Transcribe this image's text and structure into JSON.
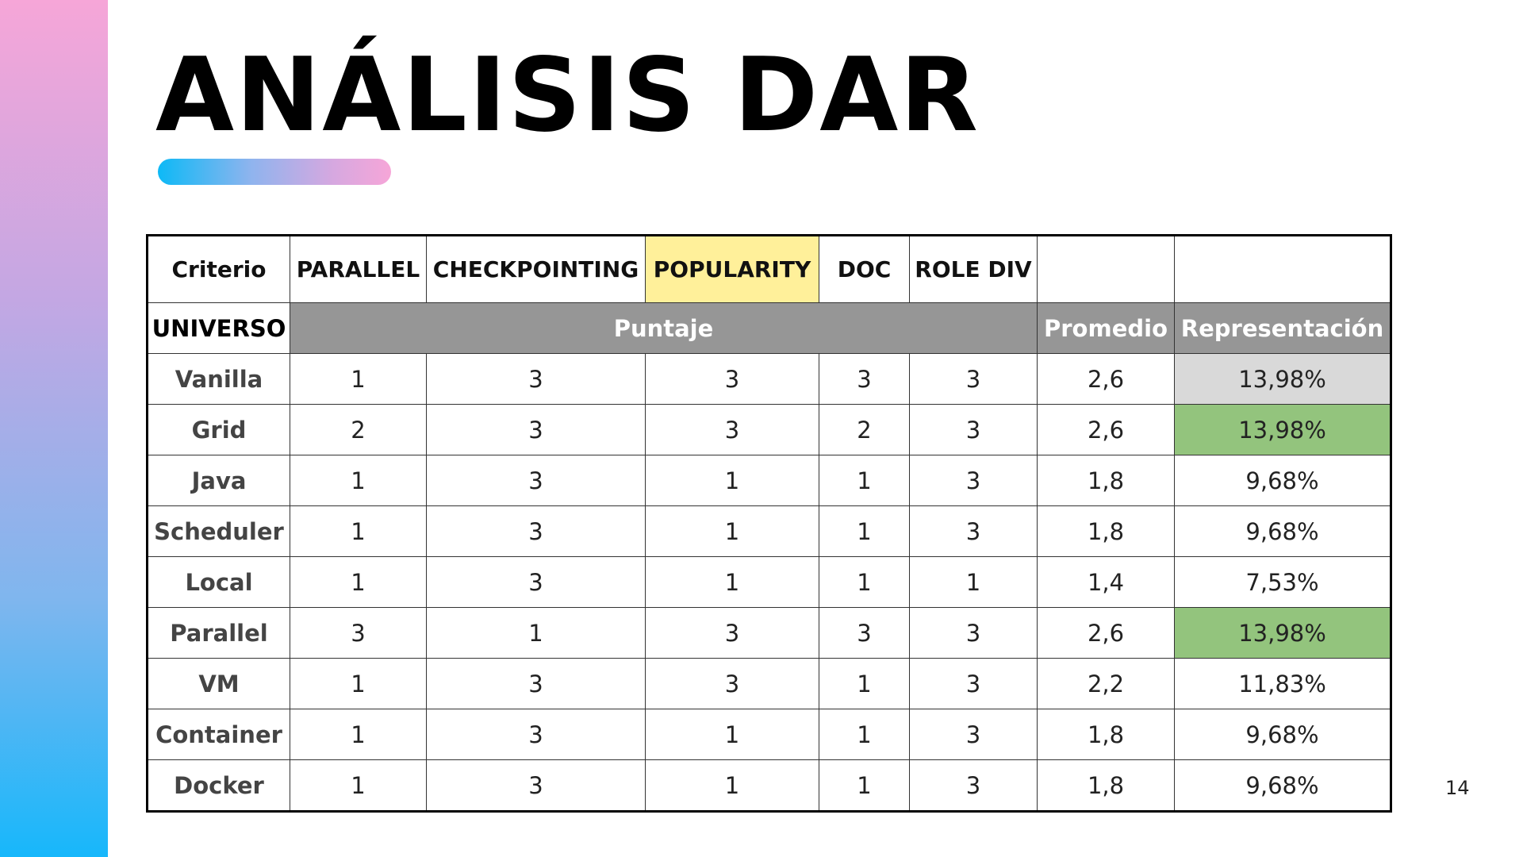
{
  "slide": {
    "title": "ANÁLISIS DAR",
    "page_number": "14"
  },
  "colors": {
    "highlight_yellow": "#fff09a",
    "header_gray": "#969696",
    "row_gray": "#d9d9d9",
    "row_green": "#93c47d"
  },
  "table": {
    "header": {
      "criterio": "Criterio",
      "columns": [
        "PARALLEL",
        "CHECKPOINTING",
        "POPULARITY",
        "DOC",
        "ROLE DIV"
      ],
      "highlighted_column": "POPULARITY"
    },
    "subheader": {
      "universo": "UNIVERSO",
      "puntaje": "Puntaje",
      "promedio": "Promedio",
      "representacion": "Representación"
    },
    "rows": [
      {
        "label": "Vanilla",
        "scores": [
          "1",
          "3",
          "3",
          "3",
          "3"
        ],
        "promedio": "2,6",
        "representacion": "13,98%",
        "highlight": "gray"
      },
      {
        "label": "Grid",
        "scores": [
          "2",
          "3",
          "3",
          "2",
          "3"
        ],
        "promedio": "2,6",
        "representacion": "13,98%",
        "highlight": "green"
      },
      {
        "label": "Java",
        "scores": [
          "1",
          "3",
          "1",
          "1",
          "3"
        ],
        "promedio": "1,8",
        "representacion": "9,68%",
        "highlight": "none"
      },
      {
        "label": "Scheduler",
        "scores": [
          "1",
          "3",
          "1",
          "1",
          "3"
        ],
        "promedio": "1,8",
        "representacion": "9,68%",
        "highlight": "none"
      },
      {
        "label": "Local",
        "scores": [
          "1",
          "3",
          "1",
          "1",
          "1"
        ],
        "promedio": "1,4",
        "representacion": "7,53%",
        "highlight": "none"
      },
      {
        "label": "Parallel",
        "scores": [
          "3",
          "1",
          "3",
          "3",
          "3"
        ],
        "promedio": "2,6",
        "representacion": "13,98%",
        "highlight": "green"
      },
      {
        "label": "VM",
        "scores": [
          "1",
          "3",
          "3",
          "1",
          "3"
        ],
        "promedio": "2,2",
        "representacion": "11,83%",
        "highlight": "none"
      },
      {
        "label": "Container",
        "scores": [
          "1",
          "3",
          "1",
          "1",
          "3"
        ],
        "promedio": "1,8",
        "representacion": "9,68%",
        "highlight": "none"
      },
      {
        "label": "Docker",
        "scores": [
          "1",
          "3",
          "1",
          "1",
          "3"
        ],
        "promedio": "1,8",
        "representacion": "9,68%",
        "highlight": "none"
      }
    ]
  }
}
